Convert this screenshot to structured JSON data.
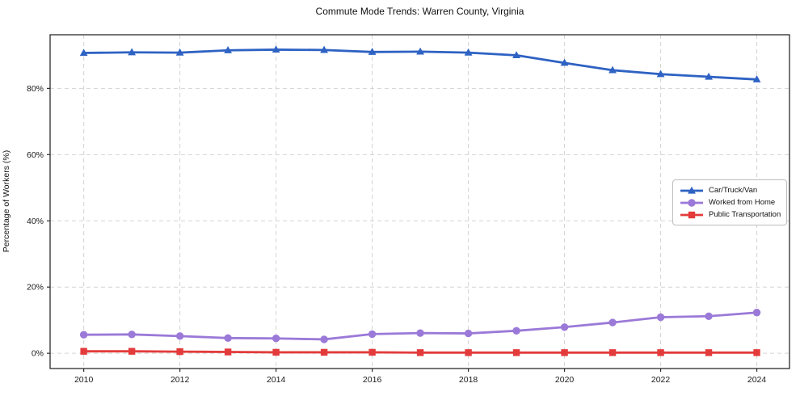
{
  "title": "Commute Mode Trends: Warren County, Virginia",
  "chart_data": {
    "type": "line",
    "title": "Commute Mode Trends: Warren County, Virginia",
    "xlabel": "",
    "ylabel": "Percentage of Workers (%)",
    "x": [
      2010,
      2011,
      2012,
      2013,
      2014,
      2015,
      2016,
      2017,
      2018,
      2019,
      2020,
      2021,
      2022,
      2023,
      2024
    ],
    "series": [
      {
        "name": "Car/Truck/Van",
        "color": "#2e62c3",
        "marker": "triangle",
        "values": [
          90.7,
          90.9,
          90.8,
          91.5,
          91.7,
          91.6,
          91.0,
          91.1,
          90.8,
          90.0,
          87.7,
          85.5,
          84.3,
          83.5,
          82.7
        ]
      },
      {
        "name": "Worked from Home",
        "color": "#9b79d8",
        "marker": "circle",
        "values": [
          5.6,
          5.7,
          5.2,
          4.6,
          4.5,
          4.2,
          5.8,
          6.1,
          6.0,
          6.8,
          7.9,
          9.3,
          10.9,
          11.2,
          12.3
        ]
      },
      {
        "name": "Public Transportation",
        "color": "#e33b3b",
        "marker": "square",
        "values": [
          0.6,
          0.6,
          0.5,
          0.4,
          0.3,
          0.3,
          0.3,
          0.2,
          0.2,
          0.2,
          0.2,
          0.2,
          0.2,
          0.2,
          0.2
        ]
      }
    ],
    "xticks": [
      2010,
      2012,
      2014,
      2016,
      2018,
      2020,
      2022,
      2024
    ],
    "yticks": [
      0,
      20,
      40,
      60,
      80
    ],
    "ytick_labels": [
      "0%",
      "20%",
      "40%",
      "60%",
      "80%"
    ],
    "xlim": [
      2009.3,
      2024.68
    ],
    "ylim": [
      -4.6,
      96.2
    ],
    "grid": true,
    "grid_style": "dashed",
    "grid_color": "#d3d3d3",
    "axis_border_color": "#2b2b2b",
    "legend_position": "center right"
  }
}
